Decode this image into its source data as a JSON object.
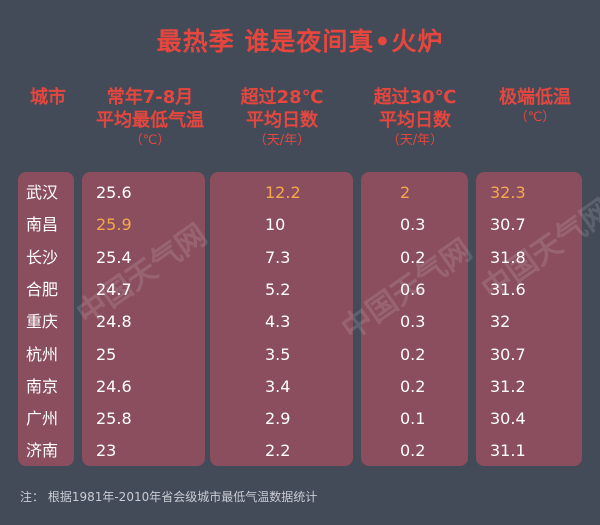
{
  "title": "最热季 谁是夜间真•火炉",
  "headers": {
    "city": "城市",
    "col1": [
      "常年7-8月",
      "平均最低气温",
      "（℃）"
    ],
    "col2": [
      "超过28℃",
      "平均日数",
      "（天/年）"
    ],
    "col3": [
      "超过30℃",
      "平均日数",
      "（天/年）"
    ],
    "col4": [
      "极端低温",
      "（℃）"
    ]
  },
  "watermark": "中国天气网",
  "note": "注： 根据1981年-2010年省会级城市最低气温数据统计",
  "colors": {
    "background": "#434a58",
    "panel": "#8a4e5e",
    "title": "#e5473f",
    "highlight": "#f5a94a",
    "value": "#ffffff"
  },
  "chart_data": {
    "type": "table",
    "columns": [
      "城市",
      "常年7-8月平均最低气温（℃）",
      "超过28℃平均日数（天/年）",
      "超过30℃平均日数（天/年）",
      "极端低温（℃）"
    ],
    "rows": [
      {
        "city": "武汉",
        "avg_min": "25.6",
        "days28": "12.2",
        "days30": "2",
        "extreme": "32.3",
        "hl": [
          false,
          true,
          true,
          true
        ]
      },
      {
        "city": "南昌",
        "avg_min": "25.9",
        "days28": "10",
        "days30": "0.3",
        "extreme": "30.7",
        "hl": [
          true,
          false,
          false,
          false
        ]
      },
      {
        "city": "长沙",
        "avg_min": "25.4",
        "days28": "7.3",
        "days30": "0.2",
        "extreme": "31.8",
        "hl": [
          false,
          false,
          false,
          false
        ]
      },
      {
        "city": "合肥",
        "avg_min": "24.7",
        "days28": "5.2",
        "days30": "0.6",
        "extreme": "31.6",
        "hl": [
          false,
          false,
          false,
          false
        ]
      },
      {
        "city": "重庆",
        "avg_min": "24.8",
        "days28": "4.3",
        "days30": "0.3",
        "extreme": "32",
        "hl": [
          false,
          false,
          false,
          false
        ]
      },
      {
        "city": "杭州",
        "avg_min": "25",
        "days28": "3.5",
        "days30": "0.2",
        "extreme": "30.7",
        "hl": [
          false,
          false,
          false,
          false
        ]
      },
      {
        "city": "南京",
        "avg_min": "24.6",
        "days28": "3.4",
        "days30": "0.2",
        "extreme": "31.2",
        "hl": [
          false,
          false,
          false,
          false
        ]
      },
      {
        "city": "广州",
        "avg_min": "25.8",
        "days28": "2.9",
        "days30": "0.1",
        "extreme": "30.4",
        "hl": [
          false,
          false,
          false,
          false
        ]
      },
      {
        "city": "济南",
        "avg_min": "23",
        "days28": "2.2",
        "days30": "0.2",
        "extreme": "31.1",
        "hl": [
          false,
          false,
          false,
          false
        ]
      }
    ]
  }
}
